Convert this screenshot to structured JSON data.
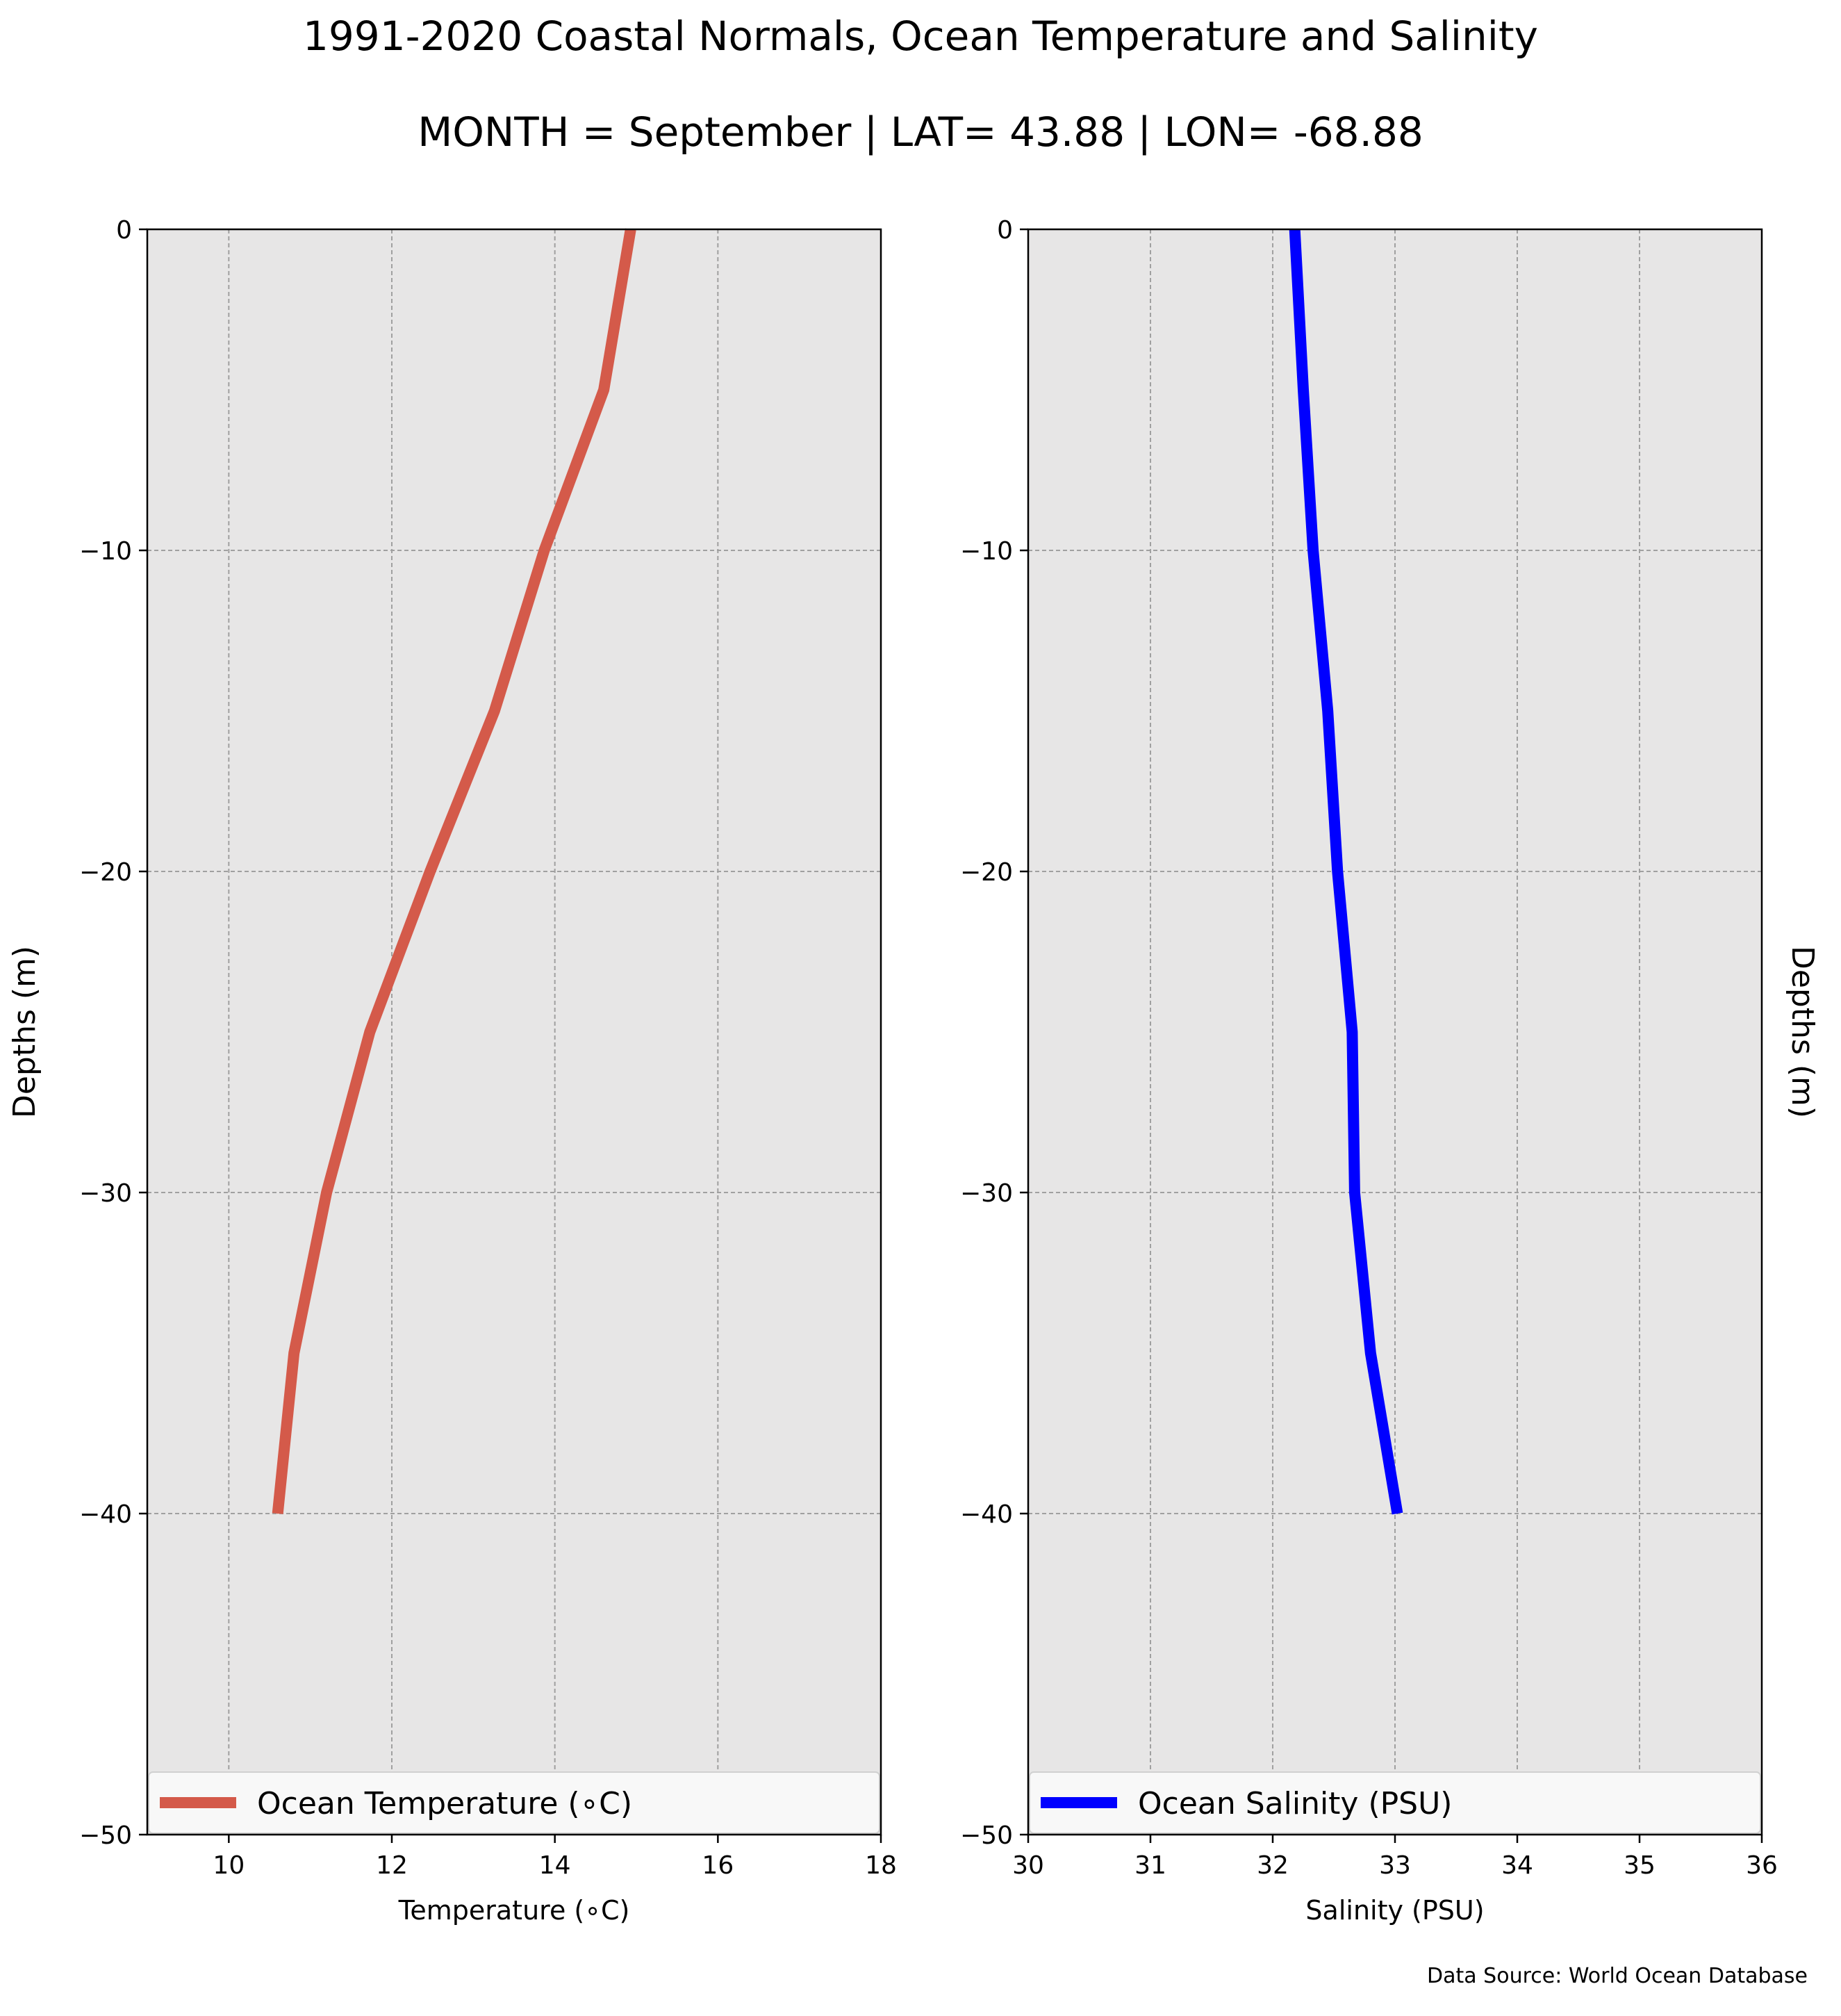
{
  "figure": {
    "title": "1991-2020 Coastal Normals, Ocean Temperature and Salinity",
    "subtitle": "MONTH = September | LAT= 43.88 | LON= -68.88",
    "source": "Data Source: World Ocean Database"
  },
  "colors": {
    "panel_bg": "#e7e6e6",
    "grid": "#a0a0a0",
    "temperature": "#d45a4a",
    "salinity": "#0000ff"
  },
  "chart_data": [
    {
      "type": "line",
      "xlabel": "Temperature (∘C)",
      "ylabel": "Depths (m)",
      "xlim": [
        9,
        18
      ],
      "ylim": [
        -50,
        0
      ],
      "xticks": [
        10,
        12,
        14,
        16,
        18
      ],
      "xtick_labels": [
        "10",
        "12",
        "14",
        "16",
        "18"
      ],
      "yticks": [
        0,
        -10,
        -20,
        -30,
        -40,
        -50
      ],
      "ytick_labels": [
        "0",
        "−10",
        "−20",
        "−30",
        "−40",
        "−50"
      ],
      "grid": true,
      "legend_position": "lower",
      "series": [
        {
          "name": "Ocean Temperature (∘C)",
          "x": [
            14.93,
            14.6,
            13.87,
            13.26,
            12.47,
            11.73,
            11.2,
            10.8,
            10.6
          ],
          "y": [
            0,
            -5,
            -10,
            -15,
            -20,
            -25,
            -30,
            -35,
            -40
          ],
          "color": "#d45a4a"
        }
      ]
    },
    {
      "type": "line",
      "xlabel": "Salinity (PSU)",
      "ylabel": "Depths (m)",
      "xlim": [
        30,
        36
      ],
      "ylim": [
        -50,
        0
      ],
      "xticks": [
        30,
        31,
        32,
        33,
        34,
        35,
        36
      ],
      "xtick_labels": [
        "30",
        "31",
        "32",
        "33",
        "34",
        "35",
        "36"
      ],
      "yticks": [
        0,
        -10,
        -20,
        -30,
        -40,
        -50
      ],
      "ytick_labels": [
        "0",
        "−10",
        "−20",
        "−30",
        "−40",
        "−50"
      ],
      "grid": true,
      "legend_position": "lower",
      "series": [
        {
          "name": "Ocean Salinity (PSU)",
          "x": [
            32.18,
            32.25,
            32.33,
            32.45,
            32.53,
            32.65,
            32.67,
            32.8,
            33.02
          ],
          "y": [
            0,
            -5,
            -10,
            -15,
            -20,
            -25,
            -30,
            -35,
            -40
          ],
          "color": "#0000ff"
        }
      ]
    }
  ]
}
